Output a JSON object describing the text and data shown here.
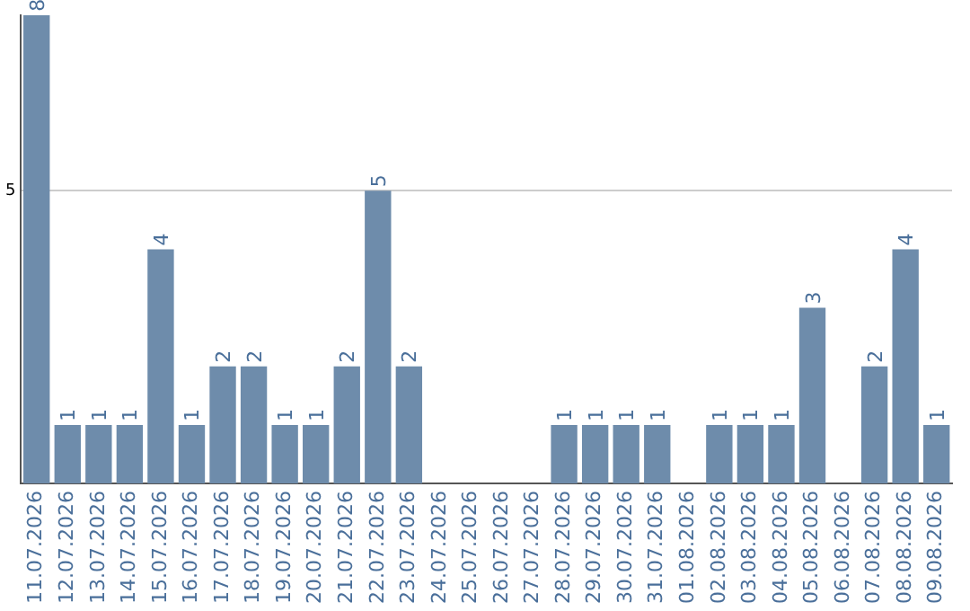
{
  "chart_data": {
    "type": "bar",
    "categories": [
      "11.07.2026",
      "12.07.2026",
      "13.07.2026",
      "14.07.2026",
      "15.07.2026",
      "16.07.2026",
      "17.07.2026",
      "18.07.2026",
      "19.07.2026",
      "20.07.2026",
      "21.07.2026",
      "22.07.2026",
      "23.07.2026",
      "24.07.2026",
      "25.07.2026",
      "26.07.2026",
      "27.07.2026",
      "28.07.2026",
      "29.07.2026",
      "30.07.2026",
      "31.07.2026",
      "01.08.2026",
      "02.08.2026",
      "03.08.2026",
      "04.08.2026",
      "05.08.2026",
      "06.08.2026",
      "07.08.2026",
      "08.08.2026",
      "09.08.2026"
    ],
    "values": [
      8,
      1,
      1,
      1,
      4,
      1,
      2,
      2,
      1,
      1,
      2,
      5,
      2,
      0,
      0,
      0,
      0,
      1,
      1,
      1,
      1,
      0,
      1,
      1,
      1,
      3,
      0,
      2,
      4,
      1
    ],
    "value_labels": [
      "8",
      "1",
      "1",
      "1",
      "4",
      "1",
      "2",
      "2",
      "1",
      "1",
      "2",
      "5",
      "2",
      null,
      null,
      null,
      null,
      "1",
      "1",
      "1",
      "1",
      null,
      "1",
      "1",
      "1",
      "3",
      null,
      "2",
      "4",
      "1"
    ],
    "color": "#6e8cab",
    "ylim": [
      0,
      8
    ],
    "yticks": [
      5
    ],
    "grid": "y",
    "legend": false
  }
}
